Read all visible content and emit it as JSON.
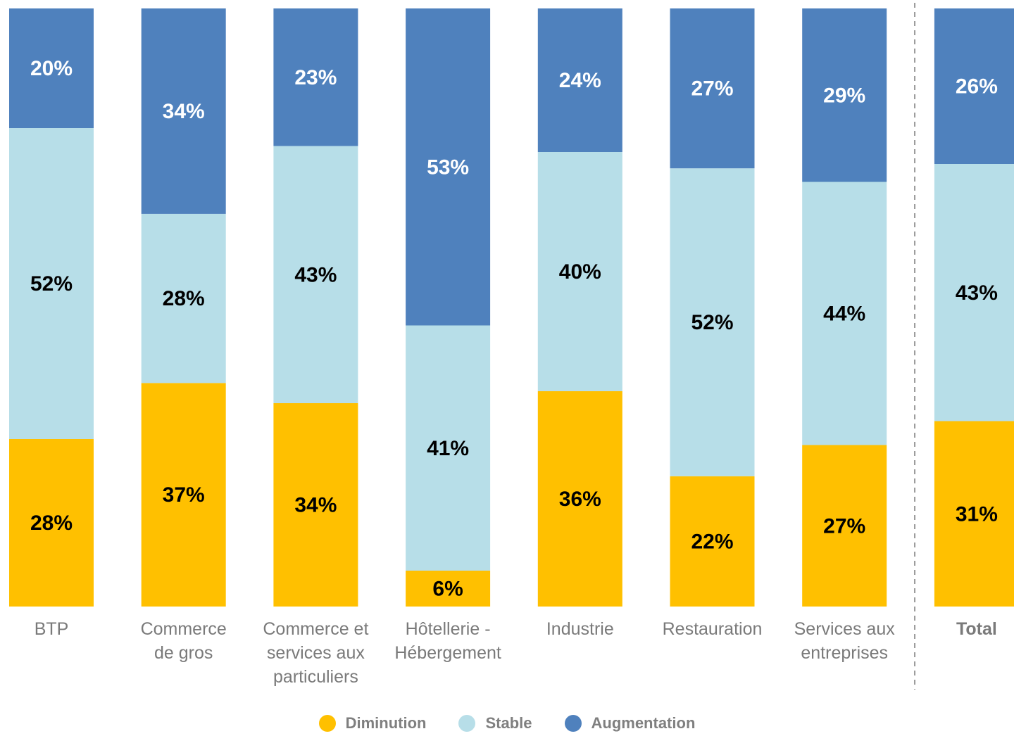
{
  "chart_data": {
    "type": "bar",
    "stacked": true,
    "percent_scale": true,
    "categories": [
      [
        "BTP"
      ],
      [
        "Commerce",
        "de gros"
      ],
      [
        "Commerce et",
        "services aux",
        "particuliers"
      ],
      [
        "Hôtellerie -",
        "Hébergement"
      ],
      [
        "Industrie"
      ],
      [
        "Restauration"
      ],
      [
        "Services aux",
        "entreprises"
      ],
      [
        "Total"
      ]
    ],
    "separator_before_last": true,
    "series": [
      {
        "name": "Diminution",
        "color": "#FFC000",
        "values": [
          28,
          37,
          34,
          6,
          36,
          22,
          27,
          31
        ],
        "labels": [
          "28%",
          "37%",
          "34%",
          "6%",
          "36%",
          "22%",
          "27%",
          "31%"
        ]
      },
      {
        "name": "Stable",
        "color": "#B7DEE8",
        "values": [
          52,
          28,
          43,
          41,
          40,
          52,
          44,
          43
        ],
        "labels": [
          "52%",
          "28%",
          "43%",
          "41%",
          "40%",
          "52%",
          "44%",
          "43%"
        ]
      },
      {
        "name": "Augmentation",
        "color": "#4F81BD",
        "values": [
          20,
          34,
          23,
          53,
          24,
          27,
          29,
          26
        ],
        "labels": [
          "20%",
          "34%",
          "23%",
          "53%",
          "24%",
          "27%",
          "29%",
          "26%"
        ]
      }
    ],
    "ylim": [
      0,
      100
    ],
    "grid": false,
    "legend_position": "bottom"
  },
  "colors": {
    "label_on_dark": "#FFFFFF",
    "label_on_light": "#000000",
    "category_text": "#7A7A7A",
    "separator": "#999999"
  }
}
